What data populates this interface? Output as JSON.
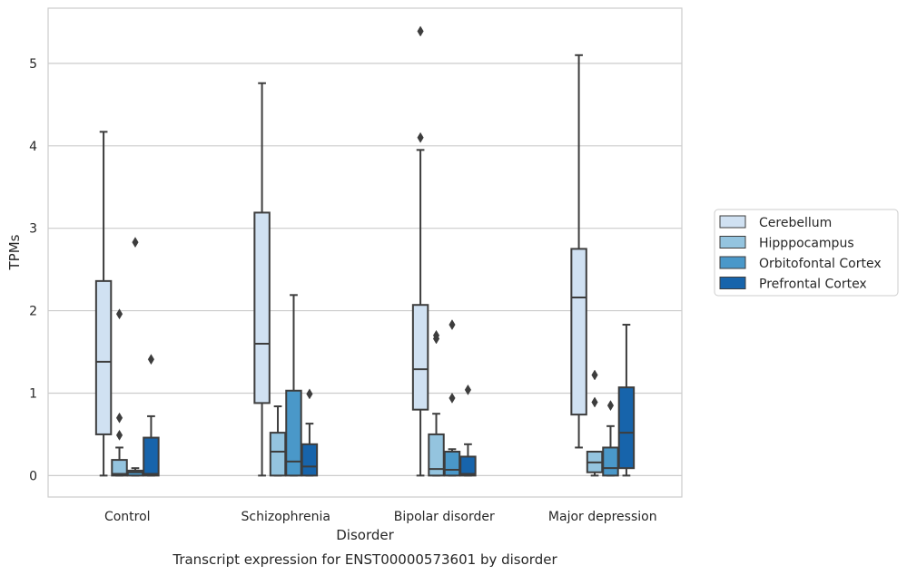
{
  "caption": "Transcript expression for ENST00000573601 by disorder",
  "chart_data": {
    "type": "box",
    "xlabel": "Disorder",
    "ylabel": "TPMs",
    "ylim": [
      -0.26,
      5.67
    ],
    "yticks": [
      0,
      1,
      2,
      3,
      4,
      5
    ],
    "grid": "horizontal",
    "legend_position": "right",
    "categories": [
      "Control",
      "Schizophrenia",
      "Bipolar disorder",
      "Major depression"
    ],
    "series": [
      {
        "name": "Cerebellum",
        "color": "#d0e1f2",
        "boxes": [
          {
            "whisker_low": 0,
            "q1": 0.5,
            "median": 1.38,
            "q3": 2.36,
            "whisker_high": 4.17,
            "outliers": []
          },
          {
            "whisker_low": 0,
            "q1": 0.88,
            "median": 1.6,
            "q3": 3.19,
            "whisker_high": 4.76,
            "outliers": []
          },
          {
            "whisker_low": 0,
            "q1": 0.8,
            "median": 1.29,
            "q3": 2.07,
            "whisker_high": 3.95,
            "outliers": [
              4.1,
              5.39
            ]
          },
          {
            "whisker_low": 0.34,
            "q1": 0.74,
            "median": 2.16,
            "q3": 2.75,
            "whisker_high": 5.1,
            "outliers": []
          }
        ]
      },
      {
        "name": "Hipppocampus",
        "color": "#94c4df",
        "boxes": [
          {
            "whisker_low": 0,
            "q1": 0,
            "median": 0.02,
            "q3": 0.19,
            "whisker_high": 0.34,
            "outliers": [
              0.49,
              0.7,
              1.96
            ]
          },
          {
            "whisker_low": 0,
            "q1": 0,
            "median": 0.29,
            "q3": 0.52,
            "whisker_high": 0.84,
            "outliers": []
          },
          {
            "whisker_low": 0,
            "q1": 0,
            "median": 0.08,
            "q3": 0.5,
            "whisker_high": 0.75,
            "outliers": [
              1.66,
              1.7
            ]
          },
          {
            "whisker_low": 0,
            "q1": 0.04,
            "median": 0.16,
            "q3": 0.29,
            "whisker_high": 0.29,
            "outliers": [
              0.89,
              1.22
            ]
          }
        ]
      },
      {
        "name": "Orbitofontal Cortex",
        "color": "#4a98c9",
        "boxes": [
          {
            "whisker_low": 0,
            "q1": 0,
            "median": 0.04,
            "q3": 0.06,
            "whisker_high": 0.09,
            "outliers": [
              2.83
            ]
          },
          {
            "whisker_low": 0,
            "q1": 0,
            "median": 0.17,
            "q3": 1.03,
            "whisker_high": 2.19,
            "outliers": []
          },
          {
            "whisker_low": 0,
            "q1": 0,
            "median": 0.07,
            "q3": 0.29,
            "whisker_high": 0.32,
            "outliers": [
              0.94,
              1.83
            ]
          },
          {
            "whisker_low": 0,
            "q1": 0,
            "median": 0.09,
            "q3": 0.34,
            "whisker_high": 0.6,
            "outliers": [
              0.85
            ]
          }
        ]
      },
      {
        "name": "Prefrontal Cortex",
        "color": "#1764ab",
        "boxes": [
          {
            "whisker_low": 0,
            "q1": 0,
            "median": 0.02,
            "q3": 0.46,
            "whisker_high": 0.72,
            "outliers": [
              1.41
            ]
          },
          {
            "whisker_low": 0,
            "q1": 0,
            "median": 0.11,
            "q3": 0.38,
            "whisker_high": 0.63,
            "outliers": [
              0.99
            ]
          },
          {
            "whisker_low": 0,
            "q1": 0,
            "median": 0.02,
            "q3": 0.23,
            "whisker_high": 0.38,
            "outliers": [
              1.04
            ]
          },
          {
            "whisker_low": 0,
            "q1": 0.09,
            "median": 0.52,
            "q3": 1.07,
            "whisker_high": 1.83,
            "outliers": []
          }
        ]
      }
    ]
  }
}
